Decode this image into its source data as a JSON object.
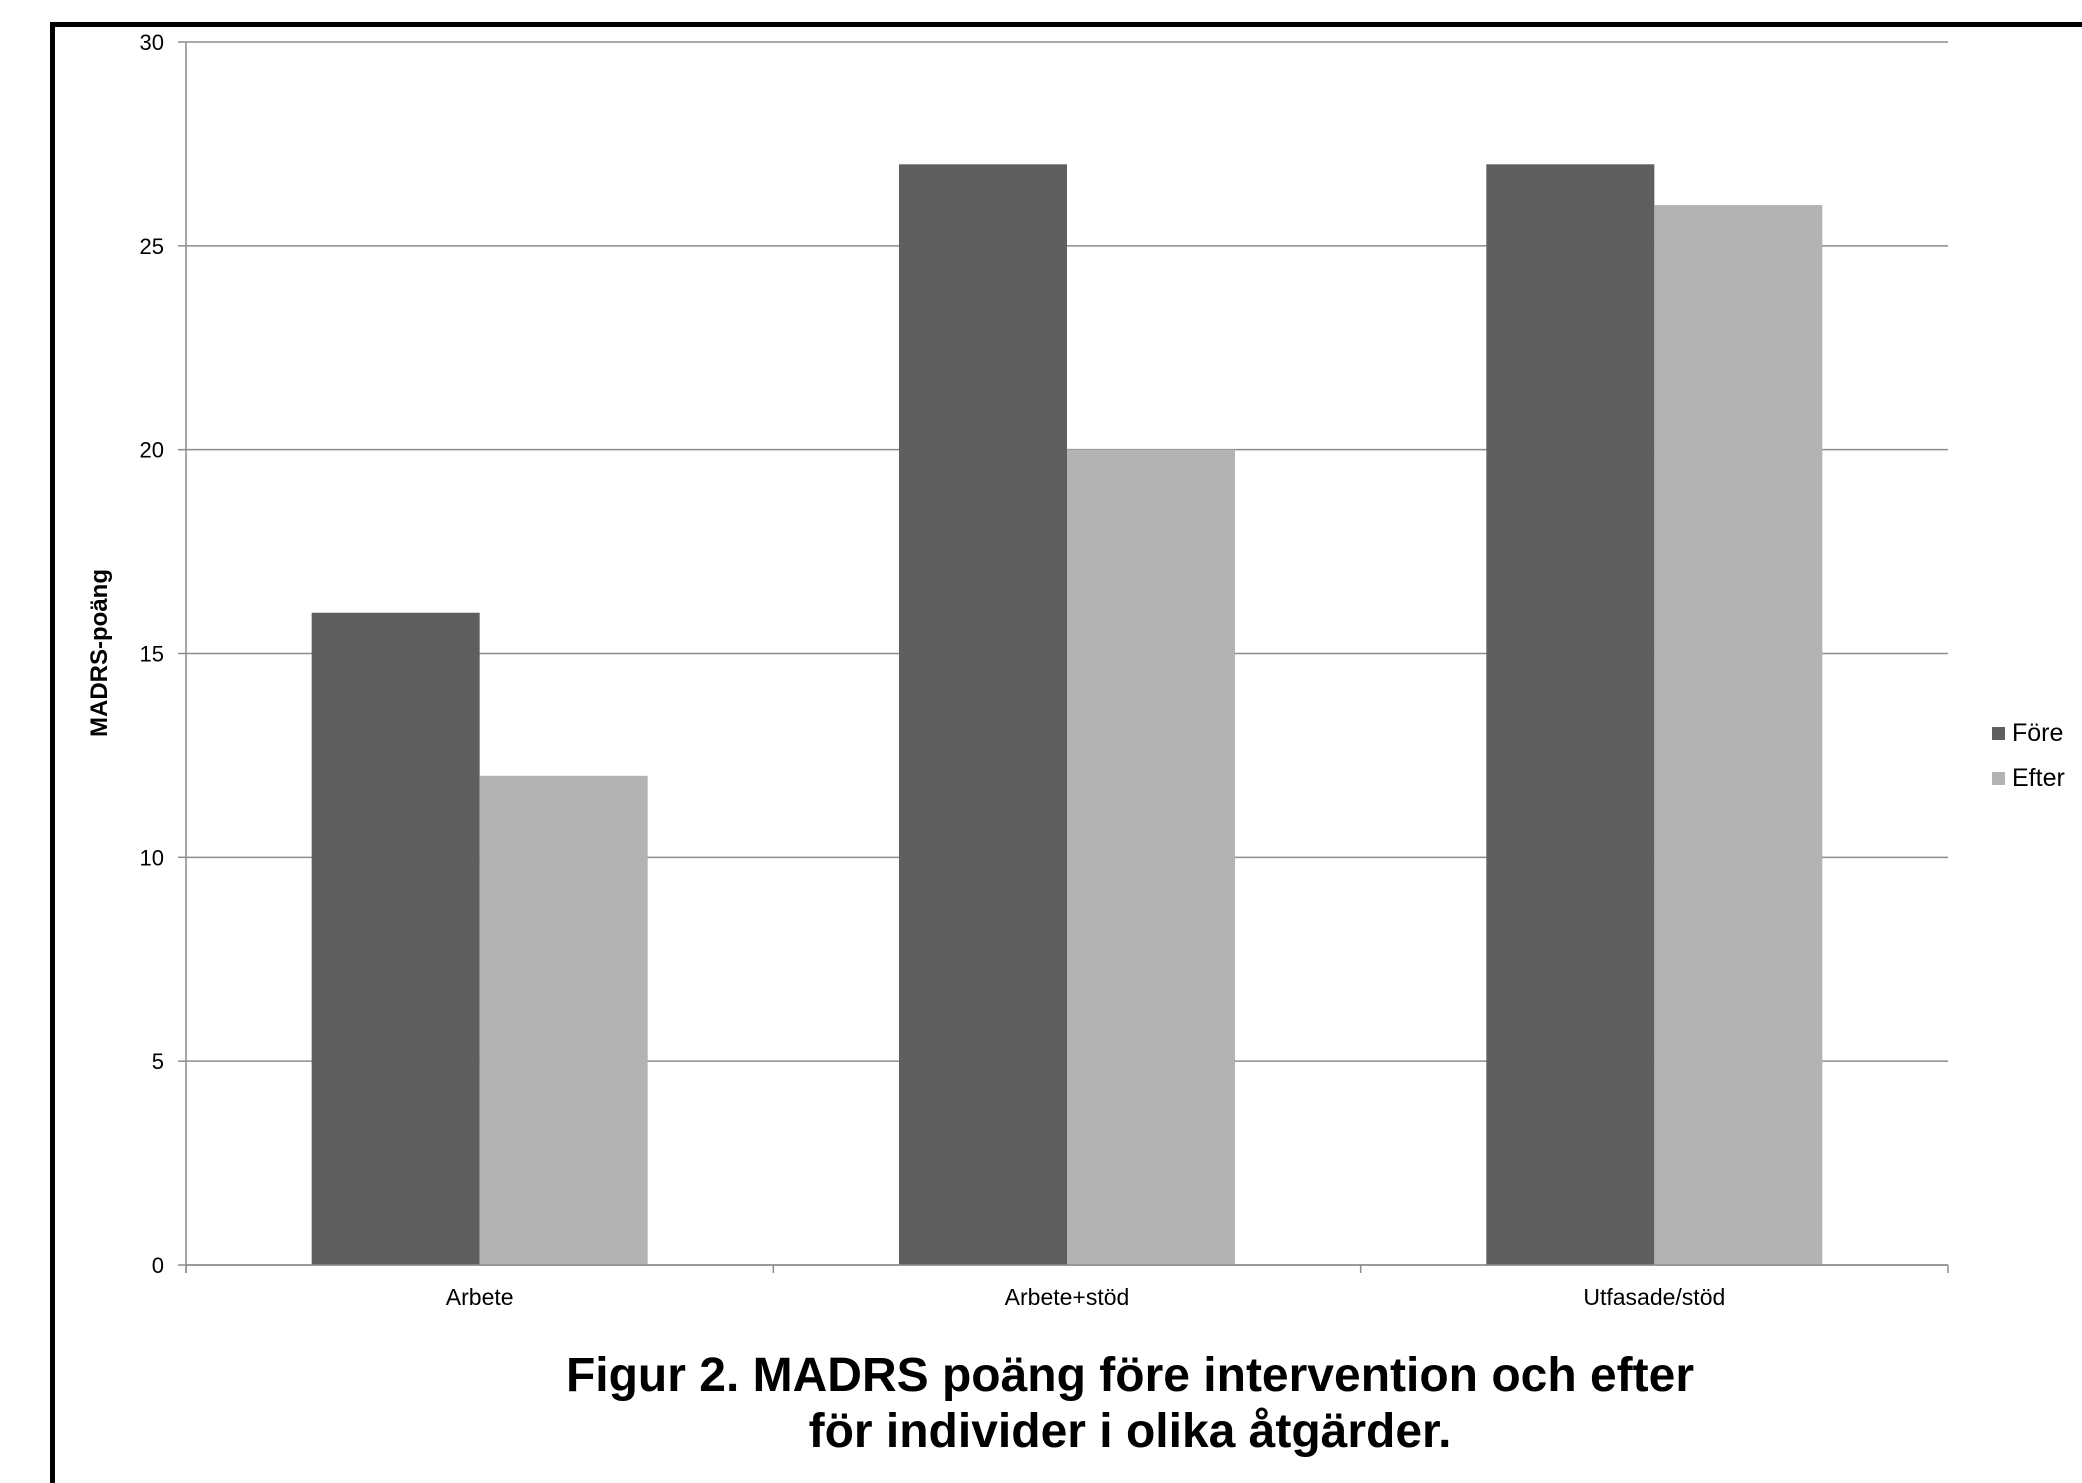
{
  "chart_data": {
    "type": "bar",
    "categories": [
      "Arbete",
      "Arbete+stöd",
      "Utfasade/stöd"
    ],
    "series": [
      {
        "name": "Före",
        "values": [
          16,
          27,
          27
        ],
        "color": "#5f5f5f"
      },
      {
        "name": "Efter",
        "values": [
          12,
          20,
          26
        ],
        "color": "#b3b3b3"
      }
    ],
    "ylabel": "MADRS-poäng",
    "ylim": [
      0,
      30
    ],
    "yticks": [
      0,
      5,
      10,
      15,
      20,
      25,
      30
    ],
    "grid": true,
    "legend": "right"
  },
  "caption": {
    "line1": "Figur 2. MADRS poäng före intervention och efter",
    "line2": "för individer i olika åtgärder."
  }
}
